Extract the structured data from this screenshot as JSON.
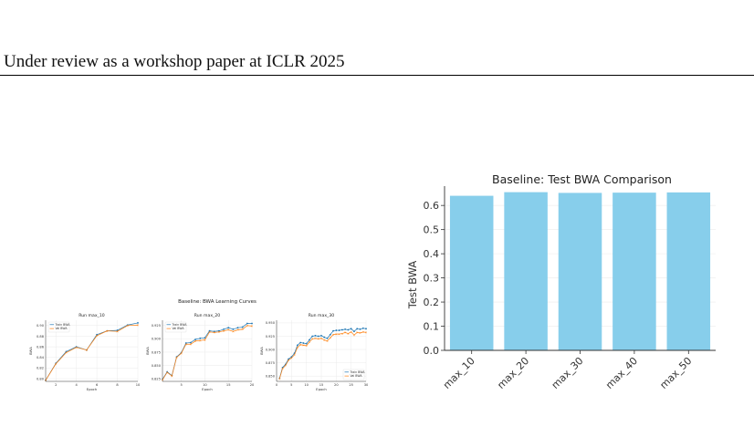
{
  "header": {
    "text": "Under review as a workshop paper at ICLR 2025"
  },
  "figure_left": {
    "suptitle": "Baseline: BWA Learning Curves"
  },
  "chart_data": [
    {
      "type": "line",
      "title": "Run max_10",
      "xlabel": "Epoch",
      "ylabel": "BWA",
      "xlim": [
        1,
        10
      ],
      "ylim": [
        0.795,
        0.91
      ],
      "xticks": [
        2,
        4,
        6,
        8,
        10
      ],
      "yticks": [
        0.8,
        0.82,
        0.84,
        0.86,
        0.88,
        0.9
      ],
      "ytick_labels": [
        "0.80",
        "0.82",
        "0.84",
        "0.86",
        "0.88",
        "0.90"
      ],
      "legend": "top-left",
      "grid": true,
      "x": [
        1,
        2,
        3,
        4,
        5,
        6,
        7,
        8,
        9,
        10
      ],
      "series": [
        {
          "name": "Train BWA",
          "color": "#1f77b4",
          "values": [
            0.797,
            0.829,
            0.851,
            0.86,
            0.854,
            0.883,
            0.89,
            0.891,
            0.901,
            0.905
          ]
        },
        {
          "name": "Val BWA",
          "color": "#ff7f0e",
          "values": [
            0.797,
            0.828,
            0.849,
            0.859,
            0.854,
            0.881,
            0.89,
            0.889,
            0.9,
            0.901
          ]
        }
      ]
    },
    {
      "type": "line",
      "title": "Run max_20",
      "xlabel": "Epoch",
      "ylabel": "BWA",
      "xlim": [
        1,
        20
      ],
      "ylim": [
        0.82,
        0.935
      ],
      "xticks": [
        5,
        10,
        15,
        20
      ],
      "yticks": [
        0.825,
        0.85,
        0.875,
        0.9,
        0.925
      ],
      "ytick_labels": [
        "0.825",
        "0.850",
        "0.875",
        "0.900",
        "0.925"
      ],
      "legend": "top-left",
      "grid": true,
      "x": [
        1,
        2,
        3,
        4,
        5,
        6,
        7,
        8,
        9,
        10,
        11,
        12,
        13,
        14,
        15,
        16,
        17,
        18,
        19,
        20
      ],
      "series": [
        {
          "name": "Train BWA",
          "color": "#1f77b4",
          "values": [
            0.824,
            0.838,
            0.831,
            0.866,
            0.874,
            0.892,
            0.893,
            0.899,
            0.901,
            0.902,
            0.915,
            0.914,
            0.915,
            0.918,
            0.921,
            0.918,
            0.921,
            0.922,
            0.929,
            0.929
          ]
        },
        {
          "name": "Val BWA",
          "color": "#ff7f0e",
          "values": [
            0.823,
            0.837,
            0.83,
            0.865,
            0.873,
            0.89,
            0.89,
            0.896,
            0.897,
            0.898,
            0.913,
            0.912,
            0.913,
            0.915,
            0.917,
            0.914,
            0.917,
            0.918,
            0.925,
            0.924
          ]
        }
      ]
    },
    {
      "type": "line",
      "title": "Run max_30",
      "xlabel": "Epoch",
      "ylabel": "BWA",
      "xlim": [
        0,
        30
      ],
      "ylim": [
        0.84,
        0.955
      ],
      "xticks": [
        0,
        5,
        10,
        15,
        20,
        25,
        30
      ],
      "yticks": [
        0.85,
        0.875,
        0.9,
        0.925,
        0.95
      ],
      "ytick_labels": [
        "0.850",
        "0.875",
        "0.900",
        "0.925",
        "0.950"
      ],
      "legend": "bottom-right",
      "grid": true,
      "x": [
        1,
        2,
        3,
        4,
        5,
        6,
        7,
        8,
        9,
        10,
        11,
        12,
        13,
        14,
        15,
        16,
        17,
        18,
        19,
        20,
        21,
        22,
        23,
        24,
        25,
        26,
        27,
        28,
        29,
        30
      ],
      "series": [
        {
          "name": "Train BWA",
          "color": "#1f77b4",
          "values": [
            0.846,
            0.866,
            0.872,
            0.882,
            0.886,
            0.893,
            0.908,
            0.913,
            0.912,
            0.911,
            0.918,
            0.925,
            0.926,
            0.925,
            0.926,
            0.923,
            0.921,
            0.928,
            0.935,
            0.936,
            0.936,
            0.937,
            0.938,
            0.937,
            0.939,
            0.934,
            0.939,
            0.938,
            0.94,
            0.939
          ]
        },
        {
          "name": "Val BWA",
          "color": "#ff7f0e",
          "values": [
            0.845,
            0.864,
            0.87,
            0.88,
            0.884,
            0.89,
            0.904,
            0.909,
            0.908,
            0.907,
            0.914,
            0.92,
            0.921,
            0.92,
            0.921,
            0.918,
            0.916,
            0.922,
            0.928,
            0.929,
            0.929,
            0.93,
            0.932,
            0.93,
            0.933,
            0.927,
            0.932,
            0.931,
            0.933,
            0.932
          ]
        }
      ]
    },
    {
      "type": "bar",
      "title": "Baseline: Test BWA Comparison",
      "xlabel": "",
      "ylabel": "Test BWA",
      "ylim": [
        0,
        0.68
      ],
      "yticks": [
        0.0,
        0.1,
        0.2,
        0.3,
        0.4,
        0.5,
        0.6
      ],
      "ytick_labels": [
        "0.0",
        "0.1",
        "0.2",
        "0.3",
        "0.4",
        "0.5",
        "0.6"
      ],
      "grid": true,
      "color": "#87ceeb",
      "categories": [
        "max_10",
        "max_20",
        "max_30",
        "max_40",
        "max_50"
      ],
      "values": [
        0.64,
        0.655,
        0.652,
        0.653,
        0.654
      ]
    }
  ]
}
